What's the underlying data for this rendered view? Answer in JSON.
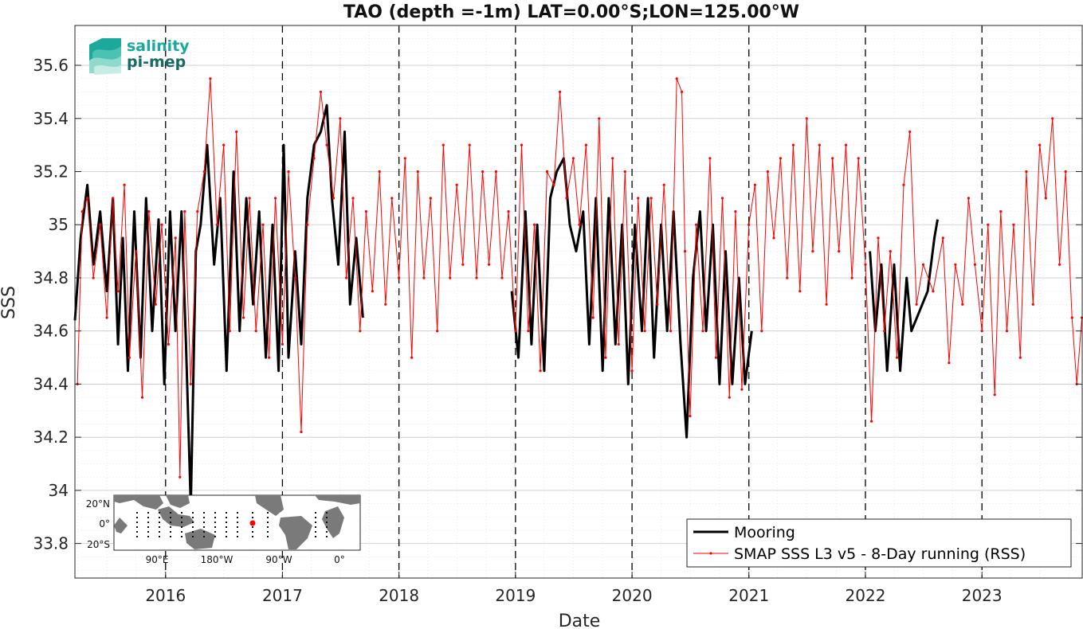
{
  "chart_data": {
    "type": "line",
    "title": "TAO (depth =-1m) LAT=0.00°S;LON=125.00°W",
    "xlabel": "Date",
    "ylabel": "SSS",
    "xlim": [
      "2015-03-23",
      "2023-11-11"
    ],
    "ylim": [
      33.67,
      35.75
    ],
    "x_ticks": [
      "2016",
      "2017",
      "2018",
      "2019",
      "2020",
      "2021",
      "2022",
      "2023"
    ],
    "y_ticks": [
      33.8,
      34,
      34.2,
      34.4,
      34.6,
      34.8,
      35,
      35.2,
      35.4,
      35.6
    ],
    "y_tick_labels": [
      "33.8",
      "34",
      "34.2",
      "34.4",
      "34.6",
      "34.8",
      "35",
      "35.2",
      "35.4",
      "35.6"
    ],
    "grid": true,
    "year_markers": "dashed vertical lines at each year start",
    "legend_position": "bottom-right",
    "series": [
      {
        "name": "Mooring",
        "color": "#000000",
        "points": [
          [
            "2015-03-23",
            34.64
          ],
          [
            "2015-04-10",
            34.95
          ],
          [
            "2015-05-01",
            35.15
          ],
          [
            "2015-05-20",
            34.85
          ],
          [
            "2015-06-10",
            35.05
          ],
          [
            "2015-07-01",
            34.75
          ],
          [
            "2015-07-20",
            35.1
          ],
          [
            "2015-08-05",
            34.55
          ],
          [
            "2015-08-20",
            34.95
          ],
          [
            "2015-09-05",
            34.45
          ],
          [
            "2015-09-25",
            35.05
          ],
          [
            "2015-10-15",
            34.5
          ],
          [
            "2015-11-01",
            35.1
          ],
          [
            "2015-11-20",
            34.6
          ],
          [
            "2015-12-10",
            35.02
          ],
          [
            "2015-12-28",
            34.4
          ],
          [
            "2016-01-15",
            35.05
          ],
          [
            "2016-02-01",
            34.6
          ],
          [
            "2016-02-20",
            35.05
          ],
          [
            "2016-03-05",
            34.55
          ],
          [
            "2016-03-20",
            33.94
          ],
          [
            "2016-04-05",
            34.9
          ],
          [
            "2016-04-20",
            35.0
          ],
          [
            "2016-05-10",
            35.3
          ],
          [
            "2016-06-01",
            34.85
          ],
          [
            "2016-06-20",
            35.1
          ],
          [
            "2016-07-10",
            34.45
          ],
          [
            "2016-08-01",
            35.2
          ],
          [
            "2016-08-20",
            34.6
          ],
          [
            "2016-09-10",
            35.1
          ],
          [
            "2016-10-01",
            34.7
          ],
          [
            "2016-10-20",
            35.05
          ],
          [
            "2016-11-10",
            34.5
          ],
          [
            "2016-12-01",
            35.0
          ],
          [
            "2016-12-20",
            34.45
          ],
          [
            "2017-01-05",
            35.3
          ],
          [
            "2017-01-20",
            34.5
          ],
          [
            "2017-02-10",
            34.9
          ],
          [
            "2017-03-01",
            34.55
          ],
          [
            "2017-03-20",
            35.1
          ],
          [
            "2017-04-10",
            35.3
          ],
          [
            "2017-05-01",
            35.35
          ],
          [
            "2017-05-20",
            35.45
          ],
          [
            "2017-06-05",
            35.1
          ],
          [
            "2017-06-25",
            34.85
          ],
          [
            "2017-07-15",
            35.35
          ],
          [
            "2017-08-01",
            34.7
          ],
          [
            "2017-08-20",
            34.95
          ],
          [
            "2017-09-10",
            34.65
          ],
          [
            "2018-12-20",
            34.75
          ],
          [
            "2019-01-10",
            34.5
          ],
          [
            "2019-02-01",
            35.05
          ],
          [
            "2019-02-20",
            34.55
          ],
          [
            "2019-03-10",
            35.0
          ],
          [
            "2019-04-01",
            34.45
          ],
          [
            "2019-04-20",
            35.1
          ],
          [
            "2019-05-10",
            35.2
          ],
          [
            "2019-06-01",
            35.25
          ],
          [
            "2019-06-20",
            35.0
          ],
          [
            "2019-07-10",
            34.9
          ],
          [
            "2019-08-01",
            35.05
          ],
          [
            "2019-08-20",
            34.55
          ],
          [
            "2019-09-10",
            35.1
          ],
          [
            "2019-10-01",
            34.45
          ],
          [
            "2019-10-20",
            35.1
          ],
          [
            "2019-11-10",
            34.55
          ],
          [
            "2019-12-01",
            35.0
          ],
          [
            "2019-12-20",
            34.4
          ],
          [
            "2020-01-10",
            35.0
          ],
          [
            "2020-02-01",
            34.6
          ],
          [
            "2020-02-20",
            35.1
          ],
          [
            "2020-03-10",
            34.5
          ],
          [
            "2020-04-01",
            35.0
          ],
          [
            "2020-04-20",
            34.6
          ],
          [
            "2020-05-10",
            35.05
          ],
          [
            "2020-06-01",
            34.55
          ],
          [
            "2020-06-20",
            34.2
          ],
          [
            "2020-07-10",
            34.8
          ],
          [
            "2020-08-01",
            35.05
          ],
          [
            "2020-08-20",
            34.6
          ],
          [
            "2020-09-10",
            35.0
          ],
          [
            "2020-10-01",
            34.4
          ],
          [
            "2020-10-20",
            34.9
          ],
          [
            "2020-11-10",
            34.4
          ],
          [
            "2020-12-01",
            34.8
          ],
          [
            "2020-12-20",
            34.4
          ],
          [
            "2021-01-10",
            34.6
          ],
          [
            "2022-01-15",
            34.9
          ],
          [
            "2022-02-01",
            34.6
          ],
          [
            "2022-02-20",
            34.85
          ],
          [
            "2022-03-10",
            34.45
          ],
          [
            "2022-04-01",
            34.85
          ],
          [
            "2022-04-20",
            34.45
          ],
          [
            "2022-05-10",
            34.8
          ],
          [
            "2022-05-25",
            34.6
          ],
          [
            "2022-07-15",
            34.75
          ],
          [
            "2022-08-05",
            34.95
          ],
          [
            "2022-08-15",
            35.02
          ]
        ]
      },
      {
        "name": "SMAP SSS L3 v5 - 8-Day running (RSS)",
        "color": "#ff0000",
        "points": [
          [
            "2015-03-31",
            34.4
          ],
          [
            "2015-04-15",
            35.05
          ],
          [
            "2015-05-01",
            35.1
          ],
          [
            "2015-05-20",
            34.8
          ],
          [
            "2015-06-10",
            35.0
          ],
          [
            "2015-07-01",
            34.65
          ],
          [
            "2015-07-20",
            35.1
          ],
          [
            "2015-08-05",
            34.75
          ],
          [
            "2015-08-25",
            35.15
          ],
          [
            "2015-09-10",
            34.5
          ],
          [
            "2015-09-30",
            34.9
          ],
          [
            "2015-10-20",
            34.35
          ],
          [
            "2015-11-10",
            35.05
          ],
          [
            "2015-12-01",
            34.7
          ],
          [
            "2015-12-20",
            35.0
          ],
          [
            "2016-01-10",
            34.55
          ],
          [
            "2016-02-01",
            34.95
          ],
          [
            "2016-02-15",
            34.05
          ],
          [
            "2016-03-01",
            35.05
          ],
          [
            "2016-03-20",
            34.4
          ],
          [
            "2016-04-10",
            35.05
          ],
          [
            "2016-05-01",
            35.2
          ],
          [
            "2016-05-20",
            35.55
          ],
          [
            "2016-06-10",
            35.0
          ],
          [
            "2016-07-01",
            35.3
          ],
          [
            "2016-07-20",
            34.6
          ],
          [
            "2016-08-10",
            35.35
          ],
          [
            "2016-09-01",
            34.65
          ],
          [
            "2016-09-20",
            35.1
          ],
          [
            "2016-10-10",
            34.6
          ],
          [
            "2016-11-01",
            35.0
          ],
          [
            "2016-11-20",
            34.5
          ],
          [
            "2016-12-10",
            35.1
          ],
          [
            "2017-01-01",
            34.55
          ],
          [
            "2017-01-20",
            35.2
          ],
          [
            "2017-02-10",
            34.8
          ],
          [
            "2017-03-01",
            34.22
          ],
          [
            "2017-03-20",
            35.0
          ],
          [
            "2017-04-10",
            35.25
          ],
          [
            "2017-05-01",
            35.5
          ],
          [
            "2017-05-20",
            35.3
          ],
          [
            "2017-06-10",
            35.1
          ],
          [
            "2017-07-01",
            35.4
          ],
          [
            "2017-07-20",
            34.8
          ],
          [
            "2017-08-10",
            35.1
          ],
          [
            "2017-09-01",
            34.6
          ],
          [
            "2017-09-20",
            35.05
          ],
          [
            "2017-10-10",
            34.75
          ],
          [
            "2017-11-01",
            35.2
          ],
          [
            "2017-11-20",
            34.7
          ],
          [
            "2017-12-10",
            35.1
          ],
          [
            "2018-01-01",
            34.8
          ],
          [
            "2018-01-20",
            35.25
          ],
          [
            "2018-02-10",
            34.5
          ],
          [
            "2018-03-01",
            35.2
          ],
          [
            "2018-03-20",
            34.8
          ],
          [
            "2018-04-10",
            35.1
          ],
          [
            "2018-05-01",
            34.6
          ],
          [
            "2018-05-20",
            35.3
          ],
          [
            "2018-06-10",
            34.8
          ],
          [
            "2018-07-01",
            35.15
          ],
          [
            "2018-07-20",
            34.85
          ],
          [
            "2018-08-10",
            35.3
          ],
          [
            "2018-09-01",
            34.8
          ],
          [
            "2018-09-20",
            35.2
          ],
          [
            "2018-10-10",
            34.85
          ],
          [
            "2018-11-01",
            35.2
          ],
          [
            "2018-11-20",
            34.8
          ],
          [
            "2018-12-10",
            35.05
          ],
          [
            "2019-01-01",
            34.6
          ],
          [
            "2019-01-20",
            35.3
          ],
          [
            "2019-02-10",
            34.6
          ],
          [
            "2019-03-01",
            35.0
          ],
          [
            "2019-03-20",
            34.45
          ],
          [
            "2019-04-10",
            35.2
          ],
          [
            "2019-05-01",
            35.15
          ],
          [
            "2019-05-20",
            35.5
          ],
          [
            "2019-06-10",
            35.1
          ],
          [
            "2019-07-01",
            35.25
          ],
          [
            "2019-07-20",
            35.0
          ],
          [
            "2019-08-10",
            35.3
          ],
          [
            "2019-09-01",
            34.65
          ],
          [
            "2019-09-20",
            35.4
          ],
          [
            "2019-10-10",
            34.5
          ],
          [
            "2019-11-01",
            35.25
          ],
          [
            "2019-11-20",
            34.55
          ],
          [
            "2019-12-10",
            35.2
          ],
          [
            "2020-01-01",
            34.45
          ],
          [
            "2020-01-20",
            35.1
          ],
          [
            "2020-02-10",
            34.6
          ],
          [
            "2020-03-01",
            35.1
          ],
          [
            "2020-03-20",
            34.7
          ],
          [
            "2020-04-10",
            35.15
          ],
          [
            "2020-05-01",
            34.6
          ],
          [
            "2020-05-20",
            35.55
          ],
          [
            "2020-06-05",
            35.5
          ],
          [
            "2020-06-15",
            34.9
          ],
          [
            "2020-07-01",
            34.28
          ],
          [
            "2020-07-20",
            35.0
          ],
          [
            "2020-08-10",
            34.6
          ],
          [
            "2020-09-01",
            35.25
          ],
          [
            "2020-09-20",
            34.5
          ],
          [
            "2020-10-10",
            35.1
          ],
          [
            "2020-11-01",
            34.35
          ],
          [
            "2020-11-20",
            35.05
          ],
          [
            "2020-12-10",
            34.38
          ],
          [
            "2021-01-01",
            35.0
          ],
          [
            "2021-01-20",
            35.15
          ],
          [
            "2021-02-10",
            34.6
          ],
          [
            "2021-03-01",
            35.2
          ],
          [
            "2021-03-20",
            34.95
          ],
          [
            "2021-04-10",
            35.25
          ],
          [
            "2021-05-01",
            34.8
          ],
          [
            "2021-05-20",
            35.3
          ],
          [
            "2021-06-10",
            34.75
          ],
          [
            "2021-07-01",
            35.4
          ],
          [
            "2021-07-20",
            34.9
          ],
          [
            "2021-08-10",
            35.3
          ],
          [
            "2021-09-01",
            34.7
          ],
          [
            "2021-09-20",
            35.25
          ],
          [
            "2021-10-10",
            34.9
          ],
          [
            "2021-11-01",
            35.3
          ],
          [
            "2021-11-20",
            34.8
          ],
          [
            "2021-12-10",
            35.25
          ],
          [
            "2022-01-01",
            34.85
          ],
          [
            "2022-01-20",
            34.26
          ],
          [
            "2022-02-10",
            34.95
          ],
          [
            "2022-03-01",
            34.6
          ],
          [
            "2022-03-20",
            34.9
          ],
          [
            "2022-04-10",
            34.5
          ],
          [
            "2022-05-01",
            35.15
          ],
          [
            "2022-05-20",
            35.35
          ],
          [
            "2022-06-10",
            34.7
          ],
          [
            "2022-07-01",
            34.85
          ],
          [
            "2022-08-01",
            34.75
          ],
          [
            "2022-09-01",
            34.95
          ],
          [
            "2022-09-20",
            34.48
          ],
          [
            "2022-10-10",
            34.85
          ],
          [
            "2022-11-01",
            34.7
          ],
          [
            "2022-11-20",
            35.1
          ],
          [
            "2022-12-10",
            34.85
          ],
          [
            "2023-01-01",
            34.6
          ],
          [
            "2023-01-20",
            35.0
          ],
          [
            "2023-02-10",
            34.36
          ],
          [
            "2023-03-01",
            35.05
          ],
          [
            "2023-03-20",
            34.6
          ],
          [
            "2023-04-10",
            35.0
          ],
          [
            "2023-05-01",
            34.5
          ],
          [
            "2023-05-20",
            35.2
          ],
          [
            "2023-06-10",
            34.7
          ],
          [
            "2023-07-01",
            35.3
          ],
          [
            "2023-07-20",
            35.1
          ],
          [
            "2023-08-10",
            35.4
          ],
          [
            "2023-09-01",
            34.85
          ],
          [
            "2023-09-20",
            35.2
          ],
          [
            "2023-10-10",
            34.65
          ],
          [
            "2023-10-25",
            34.4
          ],
          [
            "2023-11-10",
            34.65
          ]
        ]
      }
    ]
  },
  "logo": {
    "line1": "salinity",
    "line2": "pi-mep"
  },
  "inset_map": {
    "lat_labels": [
      "20°N",
      "0°",
      "20°S"
    ],
    "lon_labels": [
      "90°E",
      "180°W",
      "90°W",
      "0°"
    ],
    "highlight_color": "#ff0000",
    "land_color": "#7a7a7a",
    "ocean_color": "#ffffff"
  }
}
